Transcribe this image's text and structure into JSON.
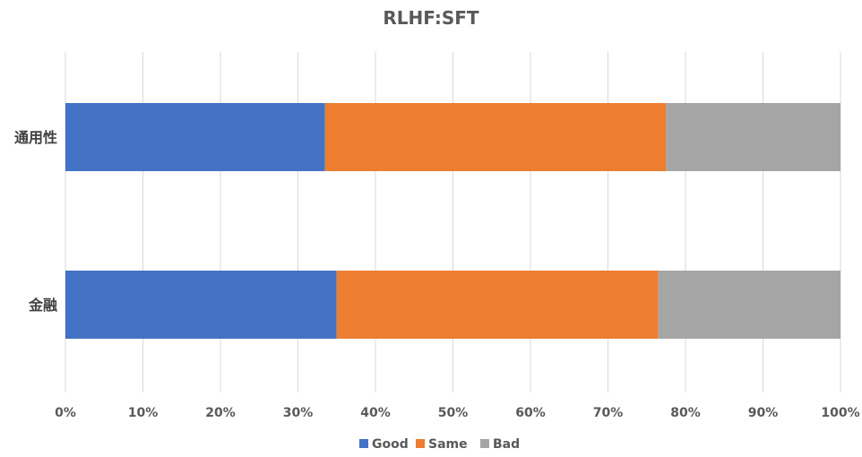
{
  "chart_data": {
    "type": "bar",
    "orientation": "horizontal",
    "stacked": "percent",
    "title": "RLHF:SFT",
    "categories": [
      "通用性",
      "金融"
    ],
    "series": [
      {
        "name": "Good",
        "values": [
          33.5,
          35.0
        ],
        "color": "#4472C4"
      },
      {
        "name": "Same",
        "values": [
          44.0,
          41.5
        ],
        "color": "#ED7D31"
      },
      {
        "name": "Bad",
        "values": [
          22.5,
          23.5
        ],
        "color": "#A5A5A5"
      }
    ],
    "xlim": [
      0,
      100
    ],
    "x_ticks": [
      "0%",
      "10%",
      "20%",
      "30%",
      "40%",
      "50%",
      "60%",
      "70%",
      "80%",
      "90%",
      "100%"
    ],
    "grid": true,
    "legend_position": "bottom"
  }
}
